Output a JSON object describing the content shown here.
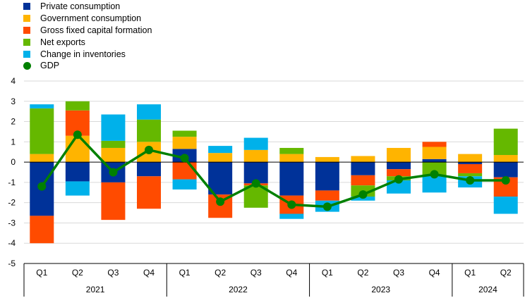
{
  "chart_data": {
    "type": "bar",
    "stacked": true,
    "title": "",
    "xlabel": "",
    "ylabel": "",
    "ylim": [
      -5,
      4
    ],
    "yticks": [
      4,
      3,
      2,
      1,
      0,
      -1,
      -2,
      -3,
      -4,
      -5
    ],
    "grid": "horizontal",
    "legend_position": "top-left",
    "categories": [
      "Q1",
      "Q2",
      "Q3",
      "Q4",
      "Q1",
      "Q2",
      "Q3",
      "Q4",
      "Q1",
      "Q2",
      "Q3",
      "Q4",
      "Q1",
      "Q2"
    ],
    "years": [
      {
        "label": "2021",
        "start": 0,
        "count": 4
      },
      {
        "label": "2022",
        "start": 4,
        "count": 4
      },
      {
        "label": "2023",
        "start": 8,
        "count": 4
      },
      {
        "label": "2024",
        "start": 12,
        "count": 2
      }
    ],
    "series": [
      {
        "name": "Private consumption",
        "color": "#003299",
        "values": [
          -2.65,
          -0.95,
          -1.0,
          -0.7,
          0.65,
          -1.6,
          -1.05,
          -1.65,
          -1.4,
          -0.65,
          -0.35,
          0.15,
          -0.1,
          -0.75
        ]
      },
      {
        "name": "Government consumption",
        "color": "#ffb400",
        "values": [
          0.4,
          1.3,
          0.7,
          1.0,
          0.6,
          0.45,
          0.6,
          0.4,
          0.25,
          0.3,
          0.7,
          0.6,
          0.4,
          0.35
        ]
      },
      {
        "name": "Gross fixed capital formation",
        "color": "#ff4b00",
        "values": [
          -1.35,
          1.25,
          -1.85,
          -1.6,
          -0.85,
          -1.15,
          -0.1,
          -0.9,
          -0.5,
          -0.5,
          -0.35,
          0.25,
          -0.45,
          -0.95
        ]
      },
      {
        "name": "Net exports",
        "color": "#65b800",
        "values": [
          2.25,
          0.45,
          0.35,
          1.1,
          0.3,
          0.0,
          -1.1,
          0.3,
          0.0,
          -0.55,
          -0.2,
          -0.65,
          -0.15,
          1.3
        ]
      },
      {
        "name": "Change in inventories",
        "color": "#00b1ea",
        "values": [
          0.2,
          -0.7,
          1.3,
          0.75,
          -0.5,
          0.35,
          0.6,
          -0.25,
          -0.55,
          -0.2,
          -0.65,
          -0.85,
          -0.55,
          -0.85
        ]
      }
    ],
    "line": {
      "name": "GDP",
      "color": "#008000",
      "values": [
        -1.2,
        1.35,
        -0.5,
        0.6,
        0.2,
        -1.95,
        -1.05,
        -2.1,
        -2.2,
        -1.6,
        -0.85,
        -0.6,
        -0.9,
        -0.9
      ]
    }
  }
}
